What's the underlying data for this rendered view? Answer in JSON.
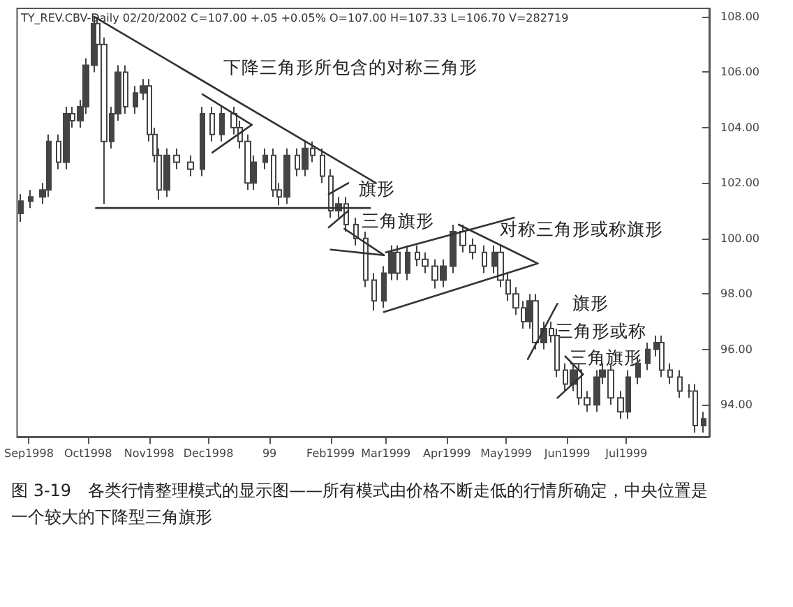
{
  "chart_data": {
    "type": "candlestick",
    "annotations": [
      "TY_REV.CBV-Daily 02/20/2002 C=107.00 +.05 +0.05% O=107.00 H=107.33 L=106.70 V=282719",
      "图 3-19　各类行情整理模式的显示图——所有模式由价格不断走低的行情所确定，中央位置是一个较大的下降型三角旗形",
      "下降三角形所包含的对称三角形",
      "旗形",
      "三角旗形",
      "对称三角形或称旗形",
      "旗形",
      "三角形或称",
      "三角旗形"
    ],
    "xlim": [
      "1998-08-26",
      "1999-08-12"
    ],
    "xticks": [
      {
        "value": "1998-09-01",
        "label": "Sep1998"
      },
      {
        "value": "1998-10-01",
        "label": "Oct1998"
      },
      {
        "value": "1998-11-01",
        "label": "Nov1998"
      },
      {
        "value": "1998-12-01",
        "label": "Dec1998"
      },
      {
        "value": "1999-01-01",
        "label": "99"
      },
      {
        "value": "1999-02-01",
        "label": "Feb1999"
      },
      {
        "value": "1999-03-01",
        "label": "Mar1999"
      },
      {
        "value": "1999-04-01",
        "label": "Apr1999"
      },
      {
        "value": "1999-05-01",
        "label": "May1999"
      },
      {
        "value": "1999-06-01",
        "label": "Jun1999"
      },
      {
        "value": "1999-07-01",
        "label": "Jul1999"
      }
    ],
    "ylim": [
      92.85,
      108.3
    ],
    "yticks": [
      {
        "value": 94,
        "label": "94.00"
      },
      {
        "value": 96,
        "label": "96.00"
      },
      {
        "value": 98,
        "label": "98.00"
      },
      {
        "value": 100,
        "label": "100.00"
      },
      {
        "value": 102,
        "label": "102.00"
      },
      {
        "value": 104,
        "label": "104.00"
      },
      {
        "value": 106,
        "label": "106.00"
      },
      {
        "value": 108,
        "label": "108.00"
      }
    ],
    "series": [
      {
        "color": "#444444",
        "x": [
          "1998-08-28",
          "1998-09-02",
          "1998-09-08",
          "1998-09-11",
          "1998-09-16",
          "1998-09-20",
          "1998-09-23",
          "1998-09-27",
          "1998-09-30",
          "1998-10-04",
          "1998-10-06",
          "1998-10-09",
          "1998-10-13",
          "1998-10-16",
          "1998-10-20",
          "1998-10-25",
          "1998-10-29",
          "1998-11-01",
          "1998-11-04",
          "1998-11-06",
          "1998-11-10",
          "1998-11-15",
          "1998-11-22",
          "1998-11-28",
          "1998-12-03",
          "1998-12-08",
          "1998-12-14",
          "1998-12-17",
          "1998-12-21",
          "1998-12-24",
          "1998-12-30",
          "1999-01-03",
          "1999-01-06",
          "1999-01-10",
          "1999-01-15",
          "1999-01-19",
          "1999-01-23",
          "1999-01-28",
          "1999-02-01",
          "1999-02-05",
          "1999-02-09",
          "1999-02-14",
          "1999-02-19",
          "1999-02-23",
          "1999-02-28",
          "1999-03-04",
          "1999-03-07",
          "1999-03-12",
          "1999-03-17",
          "1999-03-21",
          "1999-03-26",
          "1999-03-30",
          "1999-04-04",
          "1999-04-09",
          "1999-04-14",
          "1999-04-20",
          "1999-04-25",
          "1999-04-28",
          "1999-05-02",
          "1999-05-06",
          "1999-05-10",
          "1999-05-13",
          "1999-05-16",
          "1999-05-20",
          "1999-05-24",
          "1999-05-27",
          "1999-05-31",
          "1999-06-04",
          "1999-06-07",
          "1999-06-11",
          "1999-06-16",
          "1999-06-19",
          "1999-06-23",
          "1999-06-28",
          "1999-07-02",
          "1999-07-07",
          "1999-07-12",
          "1999-07-16",
          "1999-07-19",
          "1999-07-23",
          "1999-07-28",
          "1999-08-02",
          "1999-08-05",
          "1999-08-09"
        ],
        "ohlc": [
          [
            100.9,
            101.6,
            100.6,
            101.35
          ],
          [
            101.35,
            101.75,
            101.1,
            101.5
          ],
          [
            101.5,
            102.0,
            101.25,
            101.75
          ],
          [
            101.75,
            103.75,
            101.5,
            103.5
          ],
          [
            103.5,
            103.75,
            102.5,
            102.75
          ],
          [
            102.75,
            104.75,
            102.5,
            104.5
          ],
          [
            104.5,
            104.75,
            104.0,
            104.25
          ],
          [
            104.25,
            105.0,
            104.0,
            104.75
          ],
          [
            104.75,
            106.5,
            104.5,
            106.25
          ],
          [
            106.25,
            108.0,
            106.0,
            107.75
          ],
          [
            107.75,
            108.0,
            106.75,
            107.0
          ],
          [
            107.0,
            107.25,
            101.25,
            103.5
          ],
          [
            103.5,
            104.75,
            103.25,
            104.5
          ],
          [
            104.5,
            106.25,
            104.25,
            106.0
          ],
          [
            106.0,
            106.25,
            104.5,
            104.75
          ],
          [
            104.75,
            105.5,
            104.5,
            105.25
          ],
          [
            105.25,
            105.75,
            105.0,
            105.5
          ],
          [
            105.5,
            105.75,
            103.5,
            103.75
          ],
          [
            103.75,
            104.0,
            102.75,
            103.0
          ],
          [
            103.0,
            103.25,
            101.4,
            101.75
          ],
          [
            101.75,
            103.25,
            101.5,
            103.0
          ],
          [
            103.0,
            103.25,
            102.5,
            102.75
          ],
          [
            102.75,
            103.0,
            102.25,
            102.5
          ],
          [
            102.5,
            104.75,
            102.25,
            104.5
          ],
          [
            104.5,
            104.75,
            103.5,
            103.75
          ],
          [
            103.75,
            104.75,
            103.5,
            104.5
          ],
          [
            104.5,
            104.75,
            103.75,
            104.0
          ],
          [
            104.0,
            104.25,
            103.25,
            103.5
          ],
          [
            103.5,
            103.75,
            101.75,
            102.0
          ],
          [
            102.0,
            103.0,
            101.75,
            102.75
          ],
          [
            102.75,
            103.25,
            102.5,
            103.0
          ],
          [
            103.0,
            103.25,
            101.5,
            101.75
          ],
          [
            101.75,
            102.0,
            101.2,
            101.5
          ],
          [
            101.5,
            103.25,
            101.25,
            103.0
          ],
          [
            103.0,
            103.25,
            102.25,
            102.5
          ],
          [
            102.5,
            103.5,
            102.25,
            103.25
          ],
          [
            103.25,
            103.5,
            102.75,
            103.0
          ],
          [
            103.0,
            103.25,
            102.0,
            102.25
          ],
          [
            102.25,
            102.5,
            100.75,
            101.0
          ],
          [
            101.0,
            101.5,
            100.75,
            101.25
          ],
          [
            101.25,
            101.5,
            100.25,
            100.5
          ],
          [
            100.5,
            100.75,
            99.75,
            100.0
          ],
          [
            100.0,
            100.25,
            98.25,
            98.5
          ],
          [
            98.5,
            98.75,
            97.4,
            97.75
          ],
          [
            97.75,
            99.0,
            97.5,
            98.75
          ],
          [
            98.75,
            99.75,
            98.5,
            99.5
          ],
          [
            99.5,
            99.75,
            98.5,
            98.75
          ],
          [
            98.75,
            99.75,
            98.5,
            99.5
          ],
          [
            99.5,
            99.75,
            99.0,
            99.25
          ],
          [
            99.25,
            99.5,
            98.75,
            99.0
          ],
          [
            99.0,
            99.25,
            98.2,
            98.5
          ],
          [
            98.5,
            99.25,
            98.25,
            99.0
          ],
          [
            99.0,
            100.5,
            98.75,
            100.25
          ],
          [
            100.25,
            100.5,
            99.5,
            99.75
          ],
          [
            99.75,
            100.0,
            99.25,
            99.5
          ],
          [
            99.5,
            99.75,
            98.75,
            99.0
          ],
          [
            99.0,
            99.75,
            98.75,
            99.5
          ],
          [
            99.5,
            99.75,
            98.25,
            98.5
          ],
          [
            98.5,
            98.75,
            97.75,
            98.0
          ],
          [
            98.0,
            98.25,
            97.25,
            97.5
          ],
          [
            97.5,
            97.75,
            96.75,
            97.0
          ],
          [
            97.0,
            98.0,
            96.75,
            97.75
          ],
          [
            97.75,
            98.0,
            96.0,
            96.25
          ],
          [
            96.25,
            97.0,
            96.0,
            96.75
          ],
          [
            96.75,
            97.0,
            96.25,
            96.5
          ],
          [
            96.5,
            96.75,
            95.0,
            95.25
          ],
          [
            95.25,
            95.5,
            94.5,
            94.75
          ],
          [
            94.75,
            95.5,
            94.5,
            95.25
          ],
          [
            95.25,
            95.5,
            94.0,
            94.25
          ],
          [
            94.25,
            94.5,
            93.75,
            94.0
          ],
          [
            94.0,
            95.25,
            93.75,
            95.0
          ],
          [
            95.0,
            95.5,
            94.75,
            95.25
          ],
          [
            95.25,
            95.5,
            94.0,
            94.25
          ],
          [
            94.25,
            94.5,
            93.5,
            93.75
          ],
          [
            93.75,
            95.25,
            93.5,
            95.0
          ],
          [
            95.0,
            95.75,
            94.75,
            95.5
          ],
          [
            95.5,
            96.25,
            95.25,
            96.0
          ],
          [
            96.0,
            96.5,
            95.75,
            96.25
          ],
          [
            96.25,
            96.5,
            95.0,
            95.25
          ],
          [
            95.25,
            95.5,
            94.75,
            95.0
          ],
          [
            95.0,
            95.25,
            94.25,
            94.5
          ],
          [
            94.5,
            94.75,
            94.25,
            94.5
          ],
          [
            94.5,
            94.75,
            93.0,
            93.25
          ],
          [
            93.25,
            93.75,
            93.0,
            93.5
          ]
        ]
      },
      {
        "type": "line",
        "color": "#333333",
        "x": [
          "1998-10-04",
          "1999-02-24"
        ],
        "values": [
          108.0,
          102.0
        ]
      },
      {
        "type": "line",
        "color": "#333333",
        "x": [
          "1998-10-05",
          "1999-02-21"
        ],
        "values": [
          101.1,
          101.1
        ]
      },
      {
        "type": "line",
        "color": "#333333",
        "x": [
          "1998-11-28",
          "1998-12-23"
        ],
        "values": [
          105.2,
          104.1
        ]
      },
      {
        "type": "line",
        "color": "#333333",
        "x": [
          "1998-12-03",
          "1998-12-23"
        ],
        "values": [
          103.1,
          104.1
        ]
      },
      {
        "type": "line",
        "color": "#333333",
        "x": [
          "1999-01-31",
          "1999-02-10"
        ],
        "values": [
          101.6,
          102.0
        ]
      },
      {
        "type": "line",
        "color": "#333333",
        "x": [
          "1999-01-31",
          "1999-02-10"
        ],
        "values": [
          100.4,
          101.0
        ]
      },
      {
        "type": "line",
        "color": "#333333",
        "x": [
          "1999-02-08",
          "1999-02-28"
        ],
        "values": [
          100.35,
          99.4
        ]
      },
      {
        "type": "line",
        "color": "#333333",
        "x": [
          "1999-02-01",
          "1999-02-28"
        ],
        "values": [
          99.6,
          99.4
        ]
      },
      {
        "type": "line",
        "color": "#333333",
        "x": [
          "1999-03-01",
          "1999-05-05"
        ],
        "values": [
          99.5,
          100.75
        ]
      },
      {
        "type": "line",
        "color": "#333333",
        "x": [
          "1999-02-28",
          "1999-05-17"
        ],
        "values": [
          97.35,
          99.1
        ]
      },
      {
        "type": "line",
        "color": "#333333",
        "x": [
          "1999-04-07",
          "1999-05-17"
        ],
        "values": [
          100.5,
          99.1
        ]
      },
      {
        "type": "line",
        "color": "#333333",
        "x": [
          "1999-05-12",
          "1999-05-27"
        ],
        "values": [
          95.65,
          97.65
        ]
      },
      {
        "type": "line",
        "color": "#333333",
        "x": [
          "1999-05-27",
          "1999-06-09"
        ],
        "values": [
          94.25,
          95.1
        ]
      },
      {
        "type": "line",
        "color": "#333333",
        "x": [
          "1999-05-31",
          "1999-06-09"
        ],
        "values": [
          95.75,
          95.1
        ]
      }
    ]
  }
}
